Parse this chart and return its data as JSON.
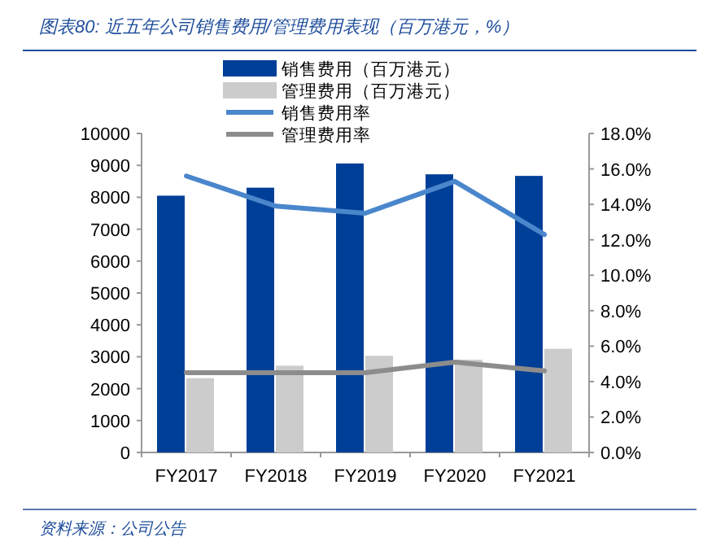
{
  "chart_data": {
    "type": "bar",
    "title": "图表80: 近五年公司销售费用/管理费用表现（百万港元，%）",
    "annotations": [
      "资料来源：公司公告"
    ],
    "categories": [
      "FY2017",
      "FY2018",
      "FY2019",
      "FY2020",
      "FY2021"
    ],
    "series": [
      {
        "name": "销售费用（百万港元）",
        "color": "#003f97",
        "values": [
          8050,
          8300,
          9060,
          8720,
          8670
        ]
      },
      {
        "name": "管理费用（百万港元）",
        "color": "#cccccc",
        "values": [
          2330,
          2720,
          3030,
          2910,
          3250
        ]
      },
      {
        "name": "销售费用率",
        "type": "line",
        "axis": "y2",
        "color": "#4a86cc",
        "values": [
          15.6,
          13.9,
          13.5,
          15.3,
          12.3
        ]
      },
      {
        "name": "管理费用率",
        "type": "line",
        "axis": "y2",
        "color": "#8c8c8c",
        "values": [
          4.5,
          4.5,
          4.5,
          5.1,
          4.6
        ]
      }
    ],
    "ylim": [
      0,
      10000
    ],
    "yticks": [
      0,
      1000,
      2000,
      3000,
      4000,
      5000,
      6000,
      7000,
      8000,
      9000,
      10000
    ],
    "y2lim": [
      0,
      18
    ],
    "y2ticks": [
      {
        "value": 0,
        "label": "0.0%"
      },
      {
        "value": 2,
        "label": "2.0%"
      },
      {
        "value": 4,
        "label": "4.0%"
      },
      {
        "value": 6,
        "label": "6.0%"
      },
      {
        "value": 8,
        "label": "8.0%"
      },
      {
        "value": 10,
        "label": "10.0%"
      },
      {
        "value": 12,
        "label": "12.0%"
      },
      {
        "value": 14,
        "label": "14.0%"
      },
      {
        "value": 16,
        "label": "16.0%"
      },
      {
        "value": 18,
        "label": "18.0%"
      }
    ],
    "legend": "top",
    "grid": false,
    "marker": "none",
    "line_style": "solid"
  }
}
